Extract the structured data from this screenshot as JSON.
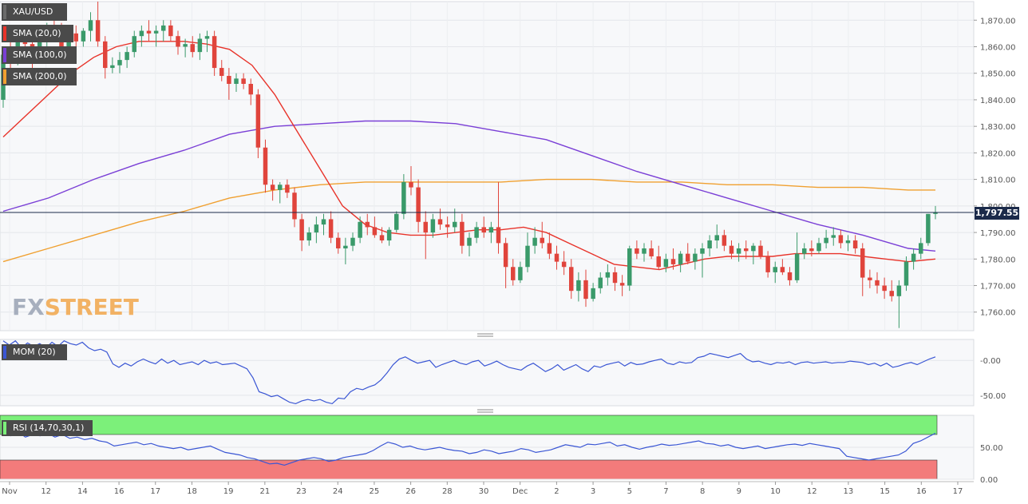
{
  "symbol": "XAU/USD",
  "brand": {
    "fx": "FX",
    "street": "STREET"
  },
  "legend": [
    {
      "label": "XAU/USD",
      "color": "#6b6b6b"
    },
    {
      "label": "SMA (20,0)",
      "color": "#e8332a"
    },
    {
      "label": "SMA (100,0)",
      "color": "#7a3fd6"
    },
    {
      "label": "SMA (200,0)",
      "color": "#f0a030"
    }
  ],
  "indicators": {
    "mom_label": "MOM (20)",
    "rsi_label": "RSI (14,70,30,1)"
  },
  "colors": {
    "up": "#3a9a6a",
    "down": "#e0443c",
    "sma20": "#e8332a",
    "sma100": "#7a3fd6",
    "sma200": "#f0a030",
    "mom": "#3a56d4",
    "rsi": "#3a56d4",
    "rsi_high": "#7cf07a",
    "rsi_low": "#f37b7b"
  },
  "current_price": "1,797.55",
  "chart_data": {
    "type": "candlestick",
    "ylim": [
      1753,
      1877
    ],
    "y_ticks": [
      "1,870.00",
      "1,860.00",
      "1,850.00",
      "1,840.00",
      "1,830.00",
      "1,820.00",
      "1,810.00",
      "1,800.00",
      "1,790.00",
      "1,780.00",
      "1,770.00",
      "1,760.00"
    ],
    "y_tick_values": [
      1870,
      1860,
      1850,
      1840,
      1830,
      1820,
      1810,
      1800,
      1790,
      1780,
      1770,
      1760
    ],
    "x_ticks": [
      "Nov",
      "12",
      "14",
      "16",
      "17",
      "18",
      "19",
      "21",
      "23",
      "24",
      "25",
      "26",
      "28",
      "30",
      "Dec",
      "2",
      "3",
      "5",
      "7",
      "8",
      "9",
      "10",
      "12",
      "13",
      "15",
      "16",
      "17"
    ],
    "candles": [
      [
        1840,
        1860,
        1837,
        1857
      ],
      [
        1857,
        1862,
        1852,
        1855
      ],
      [
        1855,
        1866,
        1853,
        1864
      ],
      [
        1864,
        1868,
        1858,
        1861
      ],
      [
        1861,
        1866,
        1852,
        1856
      ],
      [
        1856,
        1866,
        1854,
        1864
      ],
      [
        1864,
        1869,
        1860,
        1867
      ],
      [
        1867,
        1870,
        1862,
        1864
      ],
      [
        1864,
        1869,
        1858,
        1860
      ],
      [
        1860,
        1868,
        1858,
        1865
      ],
      [
        1865,
        1868,
        1860,
        1862
      ],
      [
        1862,
        1867,
        1860,
        1866
      ],
      [
        1866,
        1873,
        1862,
        1870
      ],
      [
        1870,
        1877,
        1860,
        1862
      ],
      [
        1862,
        1864,
        1848,
        1852
      ],
      [
        1852,
        1856,
        1850,
        1853
      ],
      [
        1853,
        1858,
        1850,
        1855
      ],
      [
        1855,
        1860,
        1852,
        1858
      ],
      [
        1858,
        1866,
        1856,
        1864
      ],
      [
        1864,
        1868,
        1860,
        1866
      ],
      [
        1866,
        1870,
        1862,
        1865
      ],
      [
        1865,
        1868,
        1860,
        1866
      ],
      [
        1866,
        1870,
        1862,
        1868
      ],
      [
        1868,
        1870,
        1862,
        1864
      ],
      [
        1864,
        1866,
        1857,
        1860
      ],
      [
        1860,
        1863,
        1856,
        1861
      ],
      [
        1861,
        1864,
        1856,
        1858
      ],
      [
        1858,
        1865,
        1855,
        1863
      ],
      [
        1863,
        1866,
        1858,
        1864
      ],
      [
        1864,
        1866,
        1849,
        1852
      ],
      [
        1852,
        1855,
        1847,
        1849
      ],
      [
        1849,
        1852,
        1840,
        1846
      ],
      [
        1846,
        1850,
        1843,
        1848
      ],
      [
        1848,
        1850,
        1844,
        1846
      ],
      [
        1846,
        1848,
        1838,
        1842
      ],
      [
        1842,
        1844,
        1818,
        1822
      ],
      [
        1822,
        1825,
        1805,
        1808
      ],
      [
        1808,
        1810,
        1802,
        1806
      ],
      [
        1806,
        1809,
        1801,
        1808
      ],
      [
        1808,
        1810,
        1803,
        1805
      ],
      [
        1805,
        1807,
        1792,
        1795
      ],
      [
        1795,
        1797,
        1783,
        1787
      ],
      [
        1787,
        1792,
        1785,
        1790
      ],
      [
        1790,
        1796,
        1786,
        1793
      ],
      [
        1793,
        1797,
        1789,
        1795
      ],
      [
        1795,
        1798,
        1786,
        1788
      ],
      [
        1788,
        1790,
        1782,
        1784
      ],
      [
        1784,
        1788,
        1778,
        1785
      ],
      [
        1785,
        1790,
        1783,
        1788
      ],
      [
        1788,
        1796,
        1786,
        1794
      ],
      [
        1794,
        1797,
        1789,
        1792
      ],
      [
        1792,
        1796,
        1788,
        1789
      ],
      [
        1789,
        1792,
        1786,
        1787
      ],
      [
        1787,
        1792,
        1785,
        1791
      ],
      [
        1791,
        1798,
        1790,
        1797
      ],
      [
        1797,
        1812,
        1795,
        1809
      ],
      [
        1809,
        1815,
        1804,
        1807
      ],
      [
        1807,
        1810,
        1790,
        1794
      ],
      [
        1794,
        1798,
        1780,
        1790
      ],
      [
        1790,
        1797,
        1788,
        1795
      ],
      [
        1795,
        1799,
        1791,
        1793
      ],
      [
        1793,
        1796,
        1788,
        1792
      ],
      [
        1792,
        1799,
        1790,
        1794
      ],
      [
        1794,
        1797,
        1782,
        1785
      ],
      [
        1785,
        1790,
        1781,
        1788
      ],
      [
        1788,
        1794,
        1786,
        1792
      ],
      [
        1792,
        1796,
        1788,
        1790
      ],
      [
        1790,
        1794,
        1786,
        1792
      ],
      [
        1792,
        1809,
        1782,
        1786
      ],
      [
        1786,
        1788,
        1769,
        1777
      ],
      [
        1777,
        1780,
        1770,
        1772
      ],
      [
        1772,
        1779,
        1771,
        1777
      ],
      [
        1777,
        1790,
        1775,
        1785
      ],
      [
        1785,
        1792,
        1782,
        1788
      ],
      [
        1788,
        1794,
        1784,
        1786
      ],
      [
        1786,
        1790,
        1780,
        1782
      ],
      [
        1782,
        1785,
        1776,
        1779
      ],
      [
        1779,
        1783,
        1774,
        1777
      ],
      [
        1777,
        1780,
        1765,
        1768
      ],
      [
        1768,
        1775,
        1764,
        1772
      ],
      [
        1772,
        1776,
        1762,
        1765
      ],
      [
        1765,
        1771,
        1764,
        1769
      ],
      [
        1769,
        1775,
        1767,
        1773
      ],
      [
        1773,
        1778,
        1770,
        1775
      ],
      [
        1775,
        1777,
        1768,
        1771
      ],
      [
        1771,
        1774,
        1766,
        1770
      ],
      [
        1770,
        1785,
        1768,
        1784
      ],
      [
        1784,
        1787,
        1780,
        1782
      ],
      [
        1782,
        1786,
        1779,
        1784
      ],
      [
        1784,
        1787,
        1780,
        1781
      ],
      [
        1781,
        1785,
        1776,
        1777
      ],
      [
        1777,
        1782,
        1775,
        1780
      ],
      [
        1780,
        1784,
        1776,
        1778
      ],
      [
        1778,
        1783,
        1775,
        1782
      ],
      [
        1782,
        1786,
        1778,
        1779
      ],
      [
        1779,
        1784,
        1776,
        1782
      ],
      [
        1782,
        1786,
        1773,
        1784
      ],
      [
        1784,
        1789,
        1781,
        1787
      ],
      [
        1787,
        1793,
        1784,
        1789
      ],
      [
        1789,
        1791,
        1783,
        1785
      ],
      [
        1785,
        1787,
        1780,
        1782
      ],
      [
        1782,
        1786,
        1779,
        1784
      ],
      [
        1784,
        1787,
        1780,
        1783
      ],
      [
        1783,
        1786,
        1778,
        1785
      ],
      [
        1785,
        1787,
        1780,
        1781
      ],
      [
        1781,
        1783,
        1773,
        1775
      ],
      [
        1775,
        1779,
        1771,
        1777
      ],
      [
        1777,
        1780,
        1774,
        1775
      ],
      [
        1775,
        1777,
        1770,
        1772
      ],
      [
        1772,
        1790,
        1771,
        1782
      ],
      [
        1782,
        1786,
        1780,
        1784
      ],
      [
        1784,
        1787,
        1781,
        1783
      ],
      [
        1783,
        1788,
        1782,
        1786
      ],
      [
        1786,
        1791,
        1784,
        1788
      ],
      [
        1788,
        1792,
        1785,
        1789
      ],
      [
        1789,
        1791,
        1784,
        1786
      ],
      [
        1786,
        1789,
        1783,
        1787
      ],
      [
        1787,
        1789,
        1782,
        1784
      ],
      [
        1784,
        1786,
        1766,
        1773
      ],
      [
        1773,
        1776,
        1769,
        1772
      ],
      [
        1772,
        1775,
        1767,
        1770
      ],
      [
        1770,
        1773,
        1765,
        1768
      ],
      [
        1768,
        1772,
        1764,
        1766
      ],
      [
        1766,
        1772,
        1754,
        1770
      ],
      [
        1770,
        1781,
        1768,
        1779
      ],
      [
        1779,
        1784,
        1776,
        1782
      ],
      [
        1782,
        1788,
        1780,
        1786
      ],
      [
        1786,
        1797,
        1785,
        1797
      ],
      [
        1797,
        1800,
        1795,
        1797.55
      ]
    ],
    "sma20": [
      [
        0,
        1826
      ],
      [
        10,
        1834
      ],
      [
        20,
        1842
      ],
      [
        30,
        1850
      ],
      [
        40,
        1856
      ],
      [
        50,
        1860
      ],
      [
        60,
        1862
      ],
      [
        70,
        1862
      ],
      [
        80,
        1862
      ],
      [
        90,
        1861
      ],
      [
        100,
        1859
      ],
      [
        110,
        1853
      ],
      [
        120,
        1842
      ],
      [
        130,
        1828
      ],
      [
        140,
        1814
      ],
      [
        150,
        1800
      ],
      [
        160,
        1793
      ],
      [
        170,
        1790
      ],
      [
        180,
        1789
      ],
      [
        190,
        1789
      ],
      [
        200,
        1790
      ],
      [
        210,
        1791
      ],
      [
        220,
        1791
      ],
      [
        230,
        1792
      ],
      [
        240,
        1790
      ],
      [
        250,
        1786
      ],
      [
        260,
        1782
      ],
      [
        270,
        1778
      ],
      [
        280,
        1777
      ],
      [
        290,
        1776
      ],
      [
        300,
        1778
      ],
      [
        310,
        1780
      ],
      [
        320,
        1781
      ],
      [
        330,
        1781
      ],
      [
        340,
        1781
      ],
      [
        350,
        1782
      ],
      [
        360,
        1782
      ],
      [
        370,
        1782
      ],
      [
        380,
        1781
      ],
      [
        390,
        1780
      ],
      [
        400,
        1779
      ],
      [
        412,
        1780
      ]
    ],
    "sma100": [
      [
        0,
        1798
      ],
      [
        20,
        1803
      ],
      [
        40,
        1810
      ],
      [
        60,
        1816
      ],
      [
        80,
        1821
      ],
      [
        100,
        1827
      ],
      [
        120,
        1830
      ],
      [
        140,
        1831
      ],
      [
        160,
        1832
      ],
      [
        180,
        1832
      ],
      [
        200,
        1831
      ],
      [
        220,
        1828
      ],
      [
        240,
        1825
      ],
      [
        260,
        1819
      ],
      [
        280,
        1813
      ],
      [
        300,
        1808
      ],
      [
        320,
        1803
      ],
      [
        340,
        1798
      ],
      [
        360,
        1793
      ],
      [
        380,
        1789
      ],
      [
        400,
        1784
      ],
      [
        412,
        1783
      ]
    ],
    "sma200": [
      [
        0,
        1779
      ],
      [
        20,
        1784
      ],
      [
        40,
        1789
      ],
      [
        60,
        1794
      ],
      [
        80,
        1798
      ],
      [
        100,
        1803
      ],
      [
        120,
        1806
      ],
      [
        140,
        1808
      ],
      [
        160,
        1809
      ],
      [
        180,
        1809
      ],
      [
        200,
        1809
      ],
      [
        220,
        1809
      ],
      [
        240,
        1810
      ],
      [
        260,
        1810
      ],
      [
        280,
        1809
      ],
      [
        300,
        1809
      ],
      [
        320,
        1808
      ],
      [
        340,
        1808
      ],
      [
        360,
        1807
      ],
      [
        380,
        1807
      ],
      [
        400,
        1806
      ],
      [
        412,
        1806
      ]
    ],
    "mom": {
      "ylim": [
        -65,
        30
      ],
      "ticks": [
        "-0.00",
        "-50.00"
      ],
      "tick_values": [
        0,
        -50
      ],
      "values": [
        28,
        22,
        28,
        18,
        25,
        20,
        24,
        18,
        26,
        20,
        28,
        24,
        22,
        26,
        18,
        14,
        16,
        12,
        -5,
        -10,
        -4,
        -8,
        -2,
        2,
        -2,
        -5,
        2,
        -4,
        0,
        -6,
        -4,
        -2,
        -6,
        0,
        -4,
        -2,
        -6,
        -5,
        -4,
        -8,
        -12,
        -25,
        -45,
        -48,
        -52,
        -50,
        -55,
        -60,
        -62,
        -58,
        -56,
        -58,
        -56,
        -60,
        -62,
        -54,
        -55,
        -45,
        -40,
        -42,
        -38,
        -35,
        -28,
        -18,
        -6,
        2,
        5,
        0,
        -4,
        -2,
        0,
        -10,
        -6,
        -3,
        0,
        -4,
        -6,
        -2,
        0,
        -8,
        -5,
        -1,
        -6,
        -10,
        -12,
        -14,
        -8,
        -4,
        -10,
        -16,
        -12,
        -6,
        -14,
        -10,
        -6,
        -12,
        -16,
        -8,
        -10,
        -6,
        -4,
        -2,
        -8,
        -3,
        -6,
        -5,
        -2,
        0,
        2,
        -4,
        -6,
        -2,
        -4,
        -3,
        4,
        6,
        10,
        8,
        6,
        4,
        7,
        10,
        2,
        -2,
        -1,
        -4,
        -6,
        -3,
        -4,
        -2,
        -6,
        -3,
        -2,
        -4,
        -3,
        -2,
        -4,
        -3,
        -3,
        -1,
        -2,
        -3,
        -6,
        -4,
        -8,
        -4,
        -10,
        -8,
        -5,
        -3,
        -6,
        -2,
        2,
        5
      ]
    },
    "rsi": {
      "ylim": [
        0,
        100
      ],
      "ticks": [
        "50.00",
        "0.00"
      ],
      "tick_values": [
        50,
        0
      ],
      "levels": [
        70,
        30
      ],
      "values": [
        72,
        68,
        74,
        66,
        70,
        68,
        72,
        66,
        70,
        64,
        66,
        62,
        64,
        60,
        58,
        52,
        54,
        56,
        58,
        54,
        56,
        52,
        50,
        48,
        50,
        46,
        48,
        50,
        52,
        47,
        42,
        40,
        38,
        34,
        32,
        28,
        24,
        25,
        22,
        26,
        30,
        32,
        34,
        32,
        28,
        30,
        34,
        36,
        38,
        40,
        45,
        52,
        58,
        55,
        50,
        52,
        48,
        46,
        48,
        50,
        47,
        45,
        44,
        40,
        42,
        46,
        44,
        40,
        42,
        44,
        48,
        46,
        42,
        44,
        46,
        50,
        54,
        52,
        50,
        55,
        54,
        56,
        58,
        52,
        54,
        50,
        47,
        50,
        52,
        55,
        53,
        54,
        56,
        58,
        60,
        56,
        55,
        52,
        54,
        50,
        48,
        50,
        52,
        48,
        50,
        52,
        54,
        55,
        53,
        56,
        54,
        52,
        50,
        48,
        36,
        34,
        32,
        30,
        32,
        34,
        36,
        38,
        44,
        56,
        60,
        66,
        72
      ]
    }
  }
}
